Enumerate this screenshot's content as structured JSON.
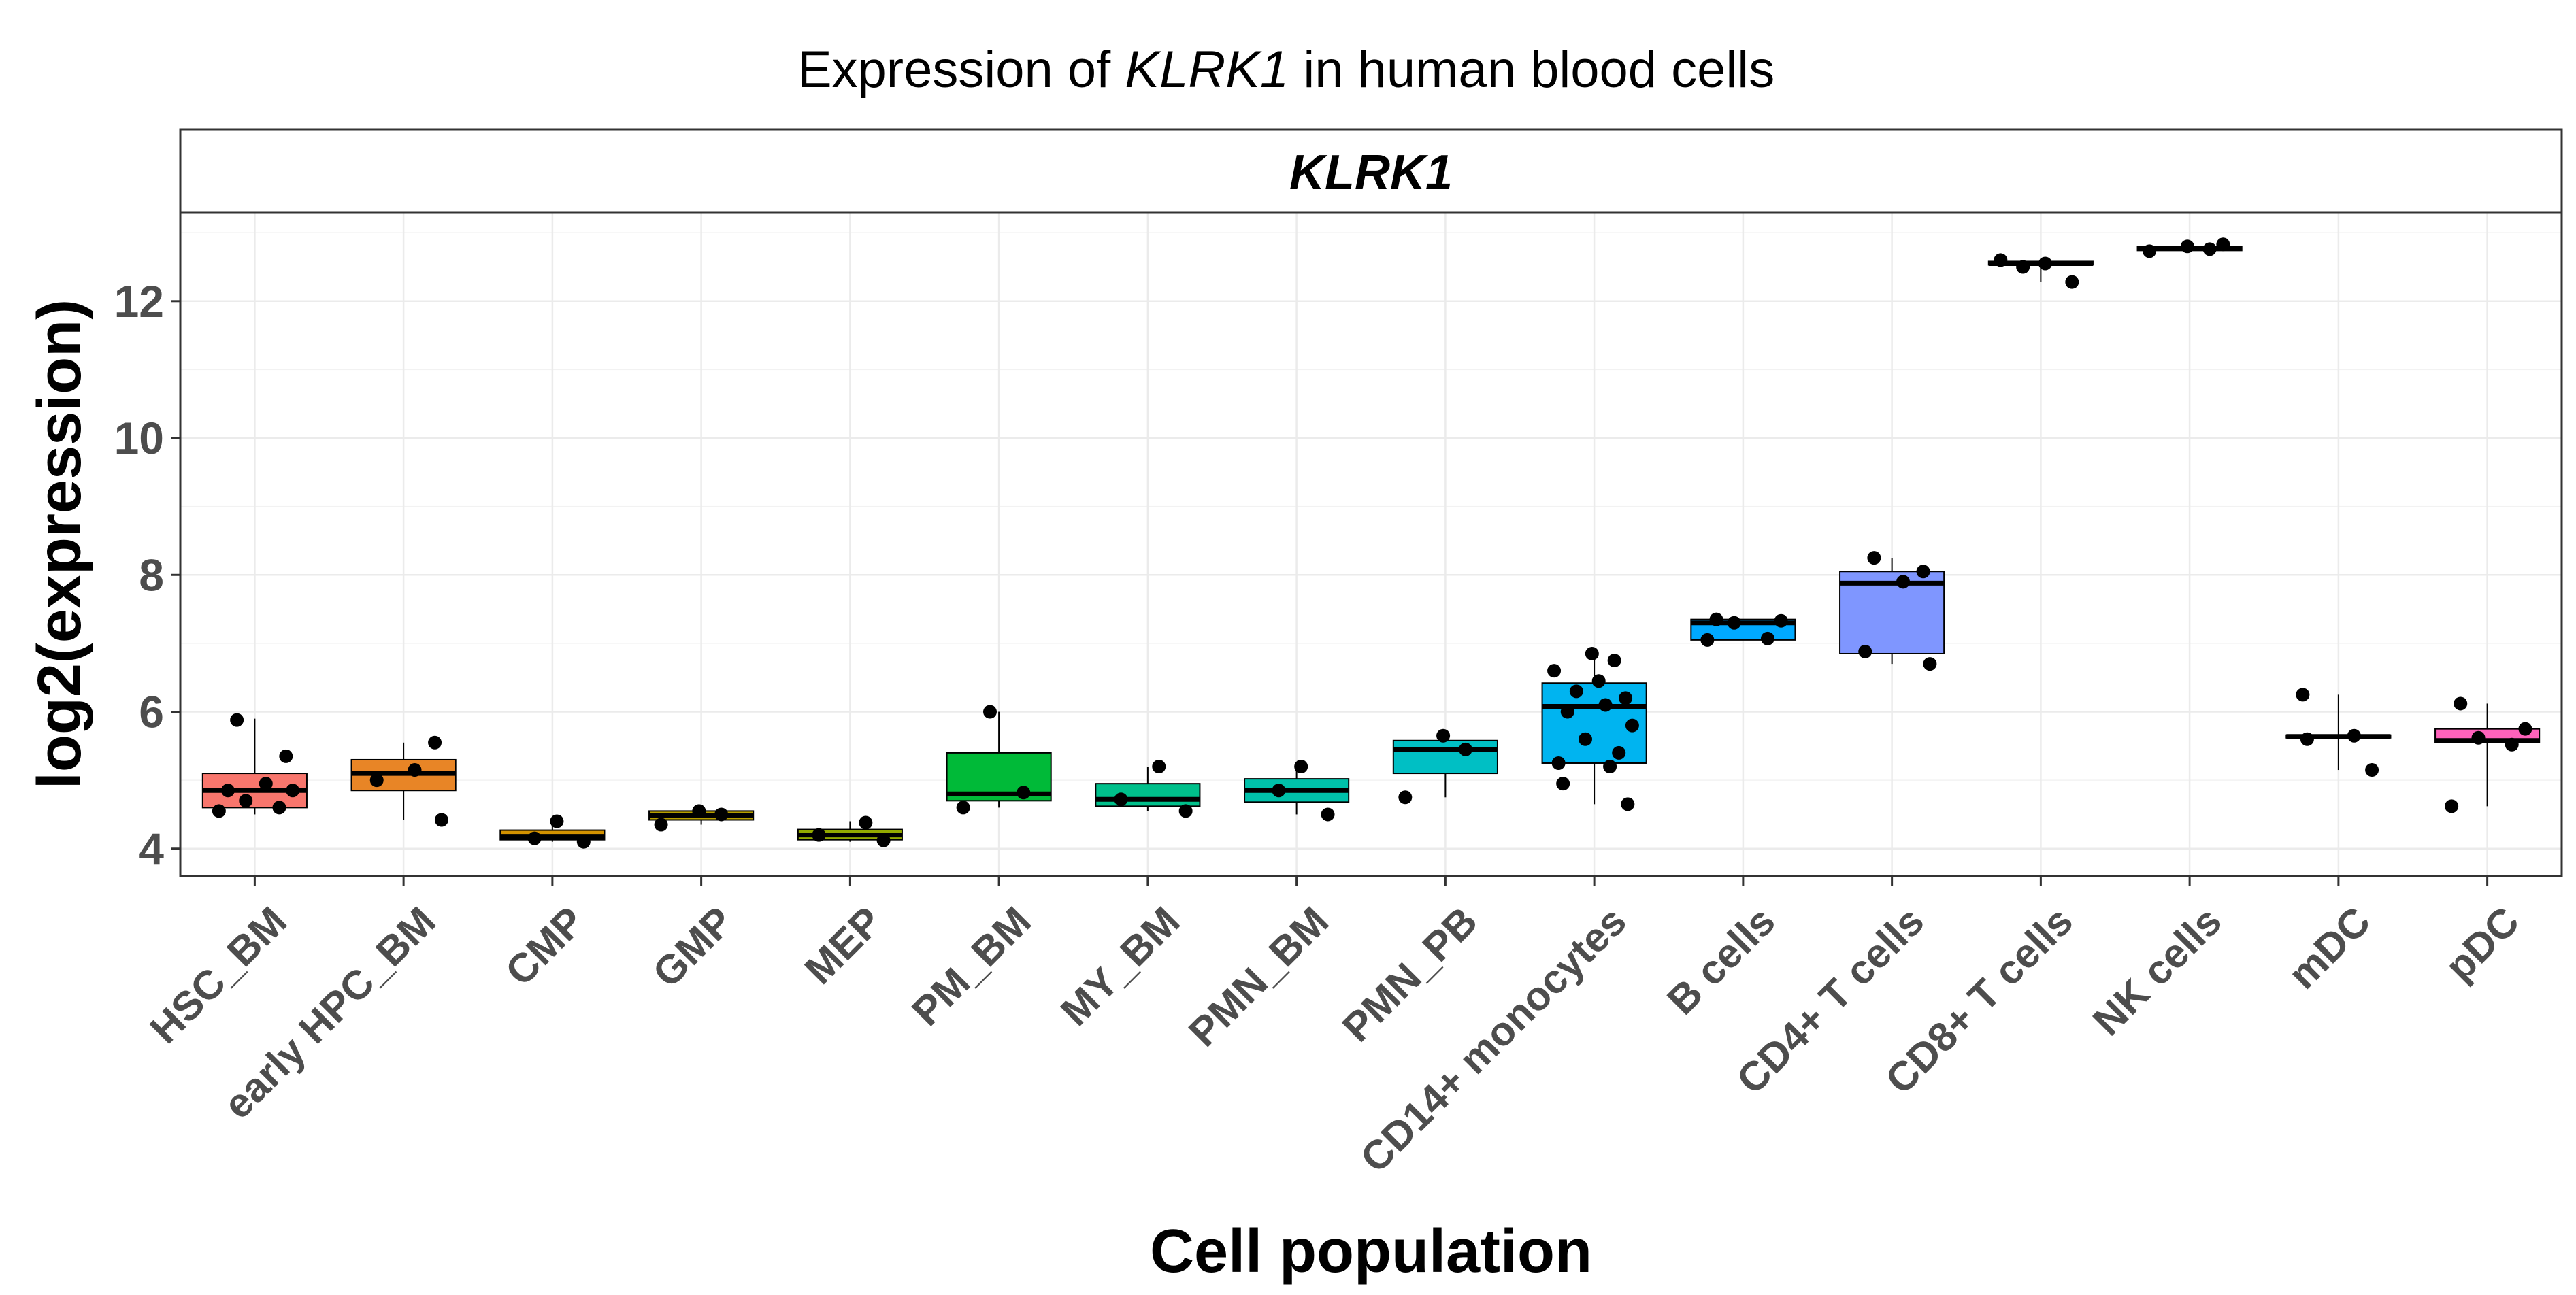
{
  "chart_data": {
    "type": "box",
    "title_prefix": "Expression of ",
    "title_gene": "KLRK1",
    "title_suffix": " in human blood cells",
    "facet_label": "KLRK1",
    "xlabel": "Cell population",
    "ylabel": "log2(expression)",
    "ylim": [
      3.6,
      13.3
    ],
    "yticks": [
      "4",
      "6",
      "8",
      "10",
      "12"
    ],
    "grid": true,
    "legend": "none",
    "categories": [
      "HSC_BM",
      "early HPC_BM",
      "CMP",
      "GMP",
      "MEP",
      "PM_BM",
      "MY_BM",
      "PMN_BM",
      "PMN_PB",
      "CD14+ monocytes",
      "B cells",
      "CD4+ T cells",
      "CD8+ T cells",
      "NK cells",
      "mDC",
      "pDC"
    ],
    "boxes": [
      {
        "name": "HSC_BM",
        "color": "#F8766D",
        "whisker_low": 4.5,
        "q1": 4.6,
        "median": 4.85,
        "q3": 5.1,
        "whisker_high": 5.9,
        "points": [
          4.55,
          4.6,
          4.7,
          4.85,
          4.85,
          4.95,
          5.35,
          5.88
        ]
      },
      {
        "name": "early HPC_BM",
        "color": "#E88526",
        "whisker_low": 4.42,
        "q1": 4.85,
        "median": 5.1,
        "q3": 5.3,
        "whisker_high": 5.55,
        "points": [
          4.42,
          5.0,
          5.15,
          5.55
        ]
      },
      {
        "name": "CMP",
        "color": "#D39200",
        "whisker_low": 4.1,
        "q1": 4.13,
        "median": 4.18,
        "q3": 4.27,
        "whisker_high": 4.4,
        "points": [
          4.1,
          4.15,
          4.4
        ]
      },
      {
        "name": "GMP",
        "color": "#B79F00",
        "whisker_low": 4.35,
        "q1": 4.42,
        "median": 4.48,
        "q3": 4.55,
        "whisker_high": 4.58,
        "points": [
          4.35,
          4.5,
          4.55
        ]
      },
      {
        "name": "MEP",
        "color": "#93AA00",
        "whisker_low": 4.1,
        "q1": 4.13,
        "median": 4.2,
        "q3": 4.28,
        "whisker_high": 4.4,
        "points": [
          4.12,
          4.2,
          4.38
        ]
      },
      {
        "name": "PM_BM",
        "color": "#00BA38",
        "whisker_low": 4.6,
        "q1": 4.7,
        "median": 4.8,
        "q3": 5.4,
        "whisker_high": 6.0,
        "points": [
          4.6,
          4.82,
          6.0
        ]
      },
      {
        "name": "MY_BM",
        "color": "#00C08B",
        "whisker_low": 4.55,
        "q1": 4.62,
        "median": 4.72,
        "q3": 4.95,
        "whisker_high": 5.2,
        "points": [
          4.55,
          4.72,
          5.2
        ]
      },
      {
        "name": "PMN_BM",
        "color": "#00C1AA",
        "whisker_low": 4.5,
        "q1": 4.68,
        "median": 4.85,
        "q3": 5.02,
        "whisker_high": 5.2,
        "points": [
          4.5,
          4.85,
          5.2
        ]
      },
      {
        "name": "PMN_PB",
        "color": "#00BFC4",
        "whisker_low": 4.75,
        "q1": 5.1,
        "median": 5.45,
        "q3": 5.58,
        "whisker_high": 5.68,
        "points": [
          4.75,
          5.45,
          5.65
        ]
      },
      {
        "name": "CD14+ monocytes",
        "color": "#00B4F0",
        "whisker_low": 4.65,
        "q1": 5.25,
        "median": 6.08,
        "q3": 6.42,
        "whisker_high": 6.9,
        "points": [
          4.65,
          4.95,
          5.2,
          5.25,
          5.4,
          5.6,
          5.8,
          6.0,
          6.1,
          6.2,
          6.3,
          6.45,
          6.6,
          6.75,
          6.85
        ]
      },
      {
        "name": "B cells",
        "color": "#00A9FF",
        "whisker_low": 7.05,
        "q1": 7.05,
        "median": 7.3,
        "q3": 7.35,
        "whisker_high": 7.35,
        "points": [
          7.05,
          7.07,
          7.3,
          7.33,
          7.35
        ]
      },
      {
        "name": "CD4+ T cells",
        "color": "#7F96FF",
        "whisker_low": 6.7,
        "q1": 6.85,
        "median": 7.88,
        "q3": 8.05,
        "whisker_high": 8.25,
        "points": [
          6.7,
          6.88,
          7.9,
          8.05,
          8.25
        ]
      },
      {
        "name": "CD8+ T cells",
        "color": "#C77CFF",
        "whisker_low": 12.28,
        "q1": 12.53,
        "median": 12.55,
        "q3": 12.58,
        "whisker_high": 12.62,
        "points": [
          12.28,
          12.5,
          12.55,
          12.6
        ]
      },
      {
        "name": "NK cells",
        "color": "#E76BF3",
        "whisker_low": 12.72,
        "q1": 12.74,
        "median": 12.77,
        "q3": 12.8,
        "whisker_high": 12.83,
        "points": [
          12.73,
          12.76,
          12.8,
          12.83
        ]
      },
      {
        "name": "mDC",
        "color": "#FA62DB",
        "whisker_low": 5.15,
        "q1": 5.62,
        "median": 5.64,
        "q3": 5.66,
        "whisker_high": 6.25,
        "points": [
          5.15,
          5.6,
          5.65,
          6.25
        ]
      },
      {
        "name": "pDC",
        "color": "#FF62BC",
        "whisker_low": 4.62,
        "q1": 5.55,
        "median": 5.58,
        "q3": 5.75,
        "whisker_high": 6.12,
        "points": [
          4.62,
          5.52,
          5.62,
          5.75,
          6.12
        ]
      }
    ]
  }
}
